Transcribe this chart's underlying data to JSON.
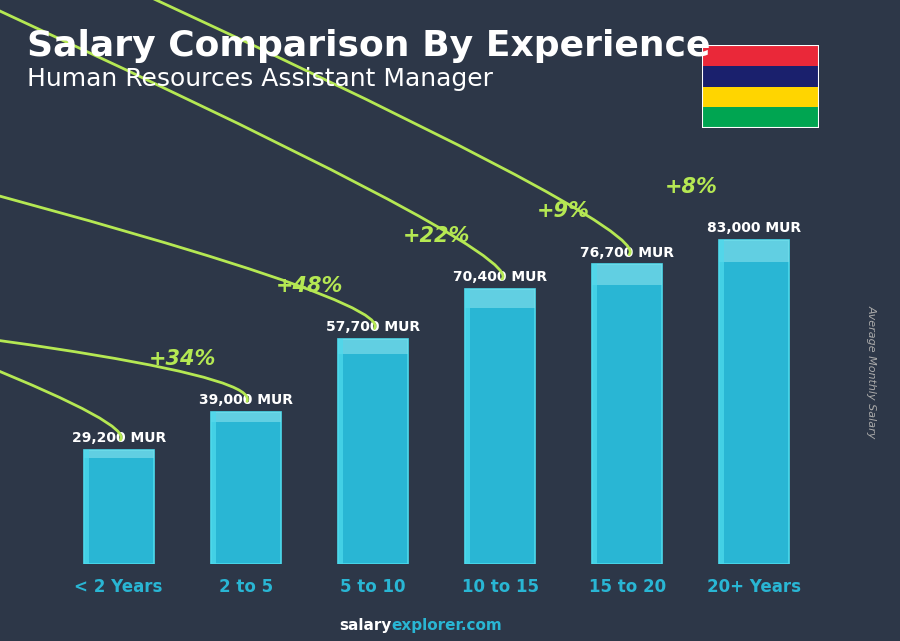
{
  "title_line1": "Salary Comparison By Experience",
  "title_line2": "Human Resources Assistant Manager",
  "categories": [
    "< 2 Years",
    "2 to 5",
    "5 to 10",
    "10 to 15",
    "15 to 20",
    "20+ Years"
  ],
  "values": [
    29200,
    39000,
    57700,
    70400,
    76700,
    83000
  ],
  "labels": [
    "29,200 MUR",
    "39,000 MUR",
    "57,700 MUR",
    "70,400 MUR",
    "76,700 MUR",
    "83,000 MUR"
  ],
  "pct_changes": [
    "+34%",
    "+48%",
    "+22%",
    "+9%",
    "+8%"
  ],
  "bar_color_main": "#29b6d4",
  "bar_color_highlight": "#80deea",
  "bar_color_edge": "#4dd9ec",
  "bg_color": "#3d4a58",
  "pct_color": "#b5e853",
  "label_color": "#ffffff",
  "ylabel": "Average Monthly Salary",
  "footer_salary": "salary",
  "footer_explorer": "explorer.com",
  "title_fontsize": 26,
  "subtitle_fontsize": 18,
  "label_fontsize": 10,
  "pct_fontsize": 15,
  "ylim_max": 100000,
  "bar_width": 0.55,
  "flag_colors": [
    "#EA2839",
    "#1A206D",
    "#FFD500",
    "#00A551"
  ]
}
